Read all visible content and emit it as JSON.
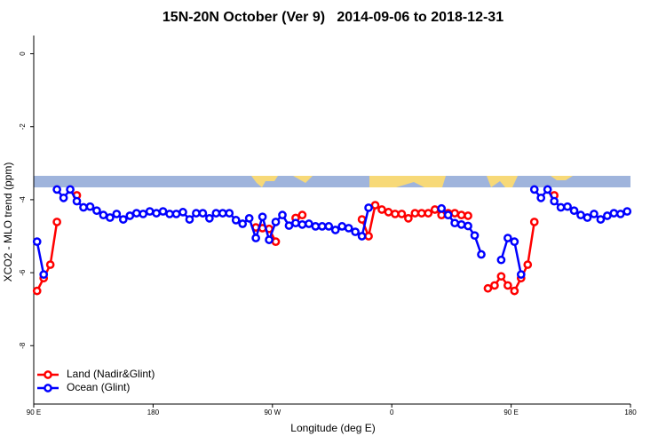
{
  "chart_data": {
    "type": "line",
    "title": "15N-20N October (Ver 9)   2014-09-06 to 2018-12-31",
    "x_label": "Longitude (deg E)",
    "y_label": "XCO2 - MLO trend (ppm)",
    "x": [
      92.5,
      97.5,
      102.5,
      107.5,
      112.5,
      117.5,
      122.5,
      127.5,
      132.5,
      137.5,
      142.5,
      147.5,
      152.5,
      157.5,
      162.5,
      167.5,
      172.5,
      177.5,
      182.5,
      187.5,
      192.5,
      197.5,
      202.5,
      207.5,
      212.5,
      217.5,
      222.5,
      227.5,
      232.5,
      237.5,
      242.5,
      247.5,
      252.5,
      257.5,
      262.5,
      267.5,
      272.5,
      277.5,
      282.5,
      287.5,
      292.5,
      297.5,
      302.5,
      307.5,
      312.5,
      317.5,
      322.5,
      327.5,
      332.5,
      337.5,
      342.5,
      347.5,
      352.5,
      357.5,
      362.5,
      367.5,
      372.5,
      377.5,
      382.5,
      387.5,
      392.5,
      397.5,
      402.5,
      407.5,
      412.5,
      417.5,
      422.5,
      427.5,
      432.5,
      437.5,
      442.5,
      447.5,
      452.5,
      457.5,
      462.5,
      467.5,
      472.5,
      477.5,
      482.5,
      487.5,
      492.5,
      497.5,
      502.5,
      507.5,
      512.5,
      517.5,
      522.5,
      527.5,
      532.5,
      537.5
    ],
    "series": [
      {
        "name": "Land (Nadir&Glint)",
        "color": "#ff0000",
        "values": [
          -6.5,
          -6.15,
          -5.78,
          -4.61,
          null,
          null,
          -3.88,
          null,
          null,
          null,
          null,
          null,
          null,
          null,
          null,
          null,
          null,
          null,
          null,
          null,
          null,
          null,
          null,
          null,
          null,
          null,
          null,
          null,
          null,
          null,
          null,
          null,
          null,
          -4.76,
          -4.78,
          -4.8,
          -5.15,
          null,
          null,
          -4.5,
          -4.42,
          null,
          null,
          null,
          null,
          null,
          null,
          null,
          null,
          -4.54,
          -5.0,
          -4.15,
          -4.27,
          -4.34,
          -4.39,
          -4.39,
          -4.51,
          -4.37,
          -4.37,
          -4.37,
          -4.27,
          -4.42,
          -4.37,
          -4.37,
          -4.42,
          -4.44,
          null,
          null,
          -6.43,
          -6.35,
          -6.1,
          -6.35,
          -6.5,
          -6.15,
          -5.78,
          -4.61,
          null,
          null,
          -3.88,
          null,
          null,
          null,
          null,
          null,
          null,
          null,
          null,
          null,
          null,
          null
        ]
      },
      {
        "name": "Ocean (Glint)",
        "color": "#0000ff",
        "values": [
          -5.15,
          -6.05,
          null,
          -3.72,
          -3.95,
          -3.72,
          -4.04,
          -4.21,
          -4.19,
          -4.3,
          -4.42,
          -4.49,
          -4.39,
          -4.54,
          -4.44,
          -4.37,
          -4.39,
          -4.32,
          -4.37,
          -4.32,
          -4.39,
          -4.39,
          -4.34,
          -4.54,
          -4.37,
          -4.37,
          -4.51,
          -4.37,
          -4.37,
          -4.37,
          -4.56,
          -4.66,
          -4.51,
          -5.05,
          -4.47,
          -5.1,
          -4.61,
          -4.42,
          -4.71,
          -4.64,
          -4.68,
          -4.66,
          -4.73,
          -4.73,
          -4.73,
          -4.83,
          -4.73,
          -4.78,
          -4.88,
          -5.0,
          -4.22,
          null,
          null,
          null,
          null,
          null,
          null,
          null,
          null,
          null,
          null,
          -4.24,
          -4.42,
          -4.64,
          -4.68,
          -4.72,
          -4.98,
          -5.5,
          null,
          null,
          -5.65,
          -5.05,
          -5.15,
          -6.05,
          null,
          -3.72,
          -3.95,
          -3.72,
          -4.04,
          -4.21,
          -4.19,
          -4.3,
          -4.42,
          -4.49,
          -4.39,
          -4.54,
          -4.44,
          -4.37,
          -4.39,
          -4.32
        ]
      }
    ],
    "xlim": [
      90,
      540
    ],
    "xticks": [
      {
        "value": 90,
        "label": "90 E"
      },
      180,
      {
        "value": 270,
        "label": "90 W"
      },
      {
        "value": 360,
        "label": "0"
      },
      {
        "value": 450,
        "label": "90 E"
      },
      {
        "value": 540,
        "label": "180"
      }
    ],
    "ylim": [
      -9.6,
      0.5
    ],
    "yticks": [
      0,
      -2,
      -4,
      -6,
      -8
    ],
    "legend": "bottom-left"
  }
}
